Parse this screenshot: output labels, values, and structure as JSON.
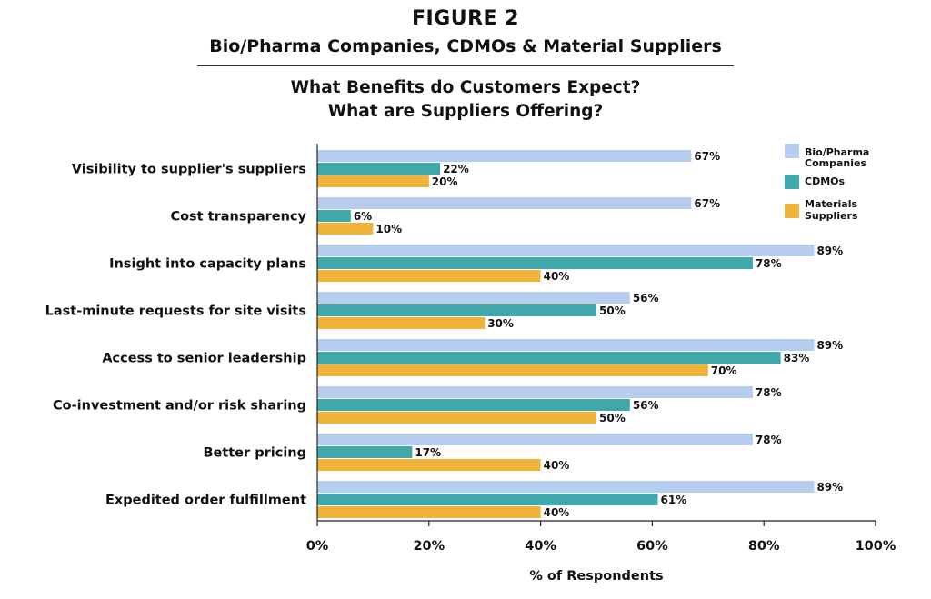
{
  "header": {
    "figure_label": "FIGURE 2",
    "subtitle": "Bio/Pharma Companies, CDMOs & Material Suppliers",
    "question_line1": "What Benefits do Customers Expect?",
    "question_line2": "What are Suppliers Offering?"
  },
  "colors": {
    "bio_pharma": "#b7cdf0",
    "cdmos": "#3ea8ad",
    "materials": "#f0b33a"
  },
  "chart_data": {
    "type": "bar",
    "orientation": "horizontal",
    "categories": [
      "Visibility to supplier's suppliers",
      "Cost transparency",
      "Insight into capacity plans",
      "Last-minute requests for site visits",
      "Access to senior leadership",
      "Co-investment and/or risk sharing",
      "Better pricing",
      "Expedited order fulfillment"
    ],
    "series": [
      {
        "name": "Bio/Pharma Companies",
        "legend_lines": [
          "Bio/Pharma",
          "Companies"
        ],
        "color": "#b7cdf0",
        "values": [
          67,
          67,
          89,
          56,
          89,
          78,
          78,
          89
        ]
      },
      {
        "name": "CDMOs",
        "legend_lines": [
          "CDMOs"
        ],
        "color": "#3ea8ad",
        "values": [
          22,
          6,
          78,
          50,
          83,
          56,
          17,
          61
        ]
      },
      {
        "name": "Materials Suppliers",
        "legend_lines": [
          "Materials",
          "Suppliers"
        ],
        "color": "#f0b33a",
        "values": [
          20,
          10,
          40,
          30,
          70,
          50,
          40,
          40
        ]
      }
    ],
    "value_suffix": "%",
    "xlim": [
      0,
      100
    ],
    "xticks": [
      0,
      20,
      40,
      60,
      80,
      100
    ],
    "xtick_labels": [
      "0%",
      "20%",
      "40%",
      "60%",
      "80%",
      "100%"
    ],
    "xlabel": "% of Respondents",
    "ylabel": "",
    "grid": false,
    "legend_position": "top-right"
  }
}
